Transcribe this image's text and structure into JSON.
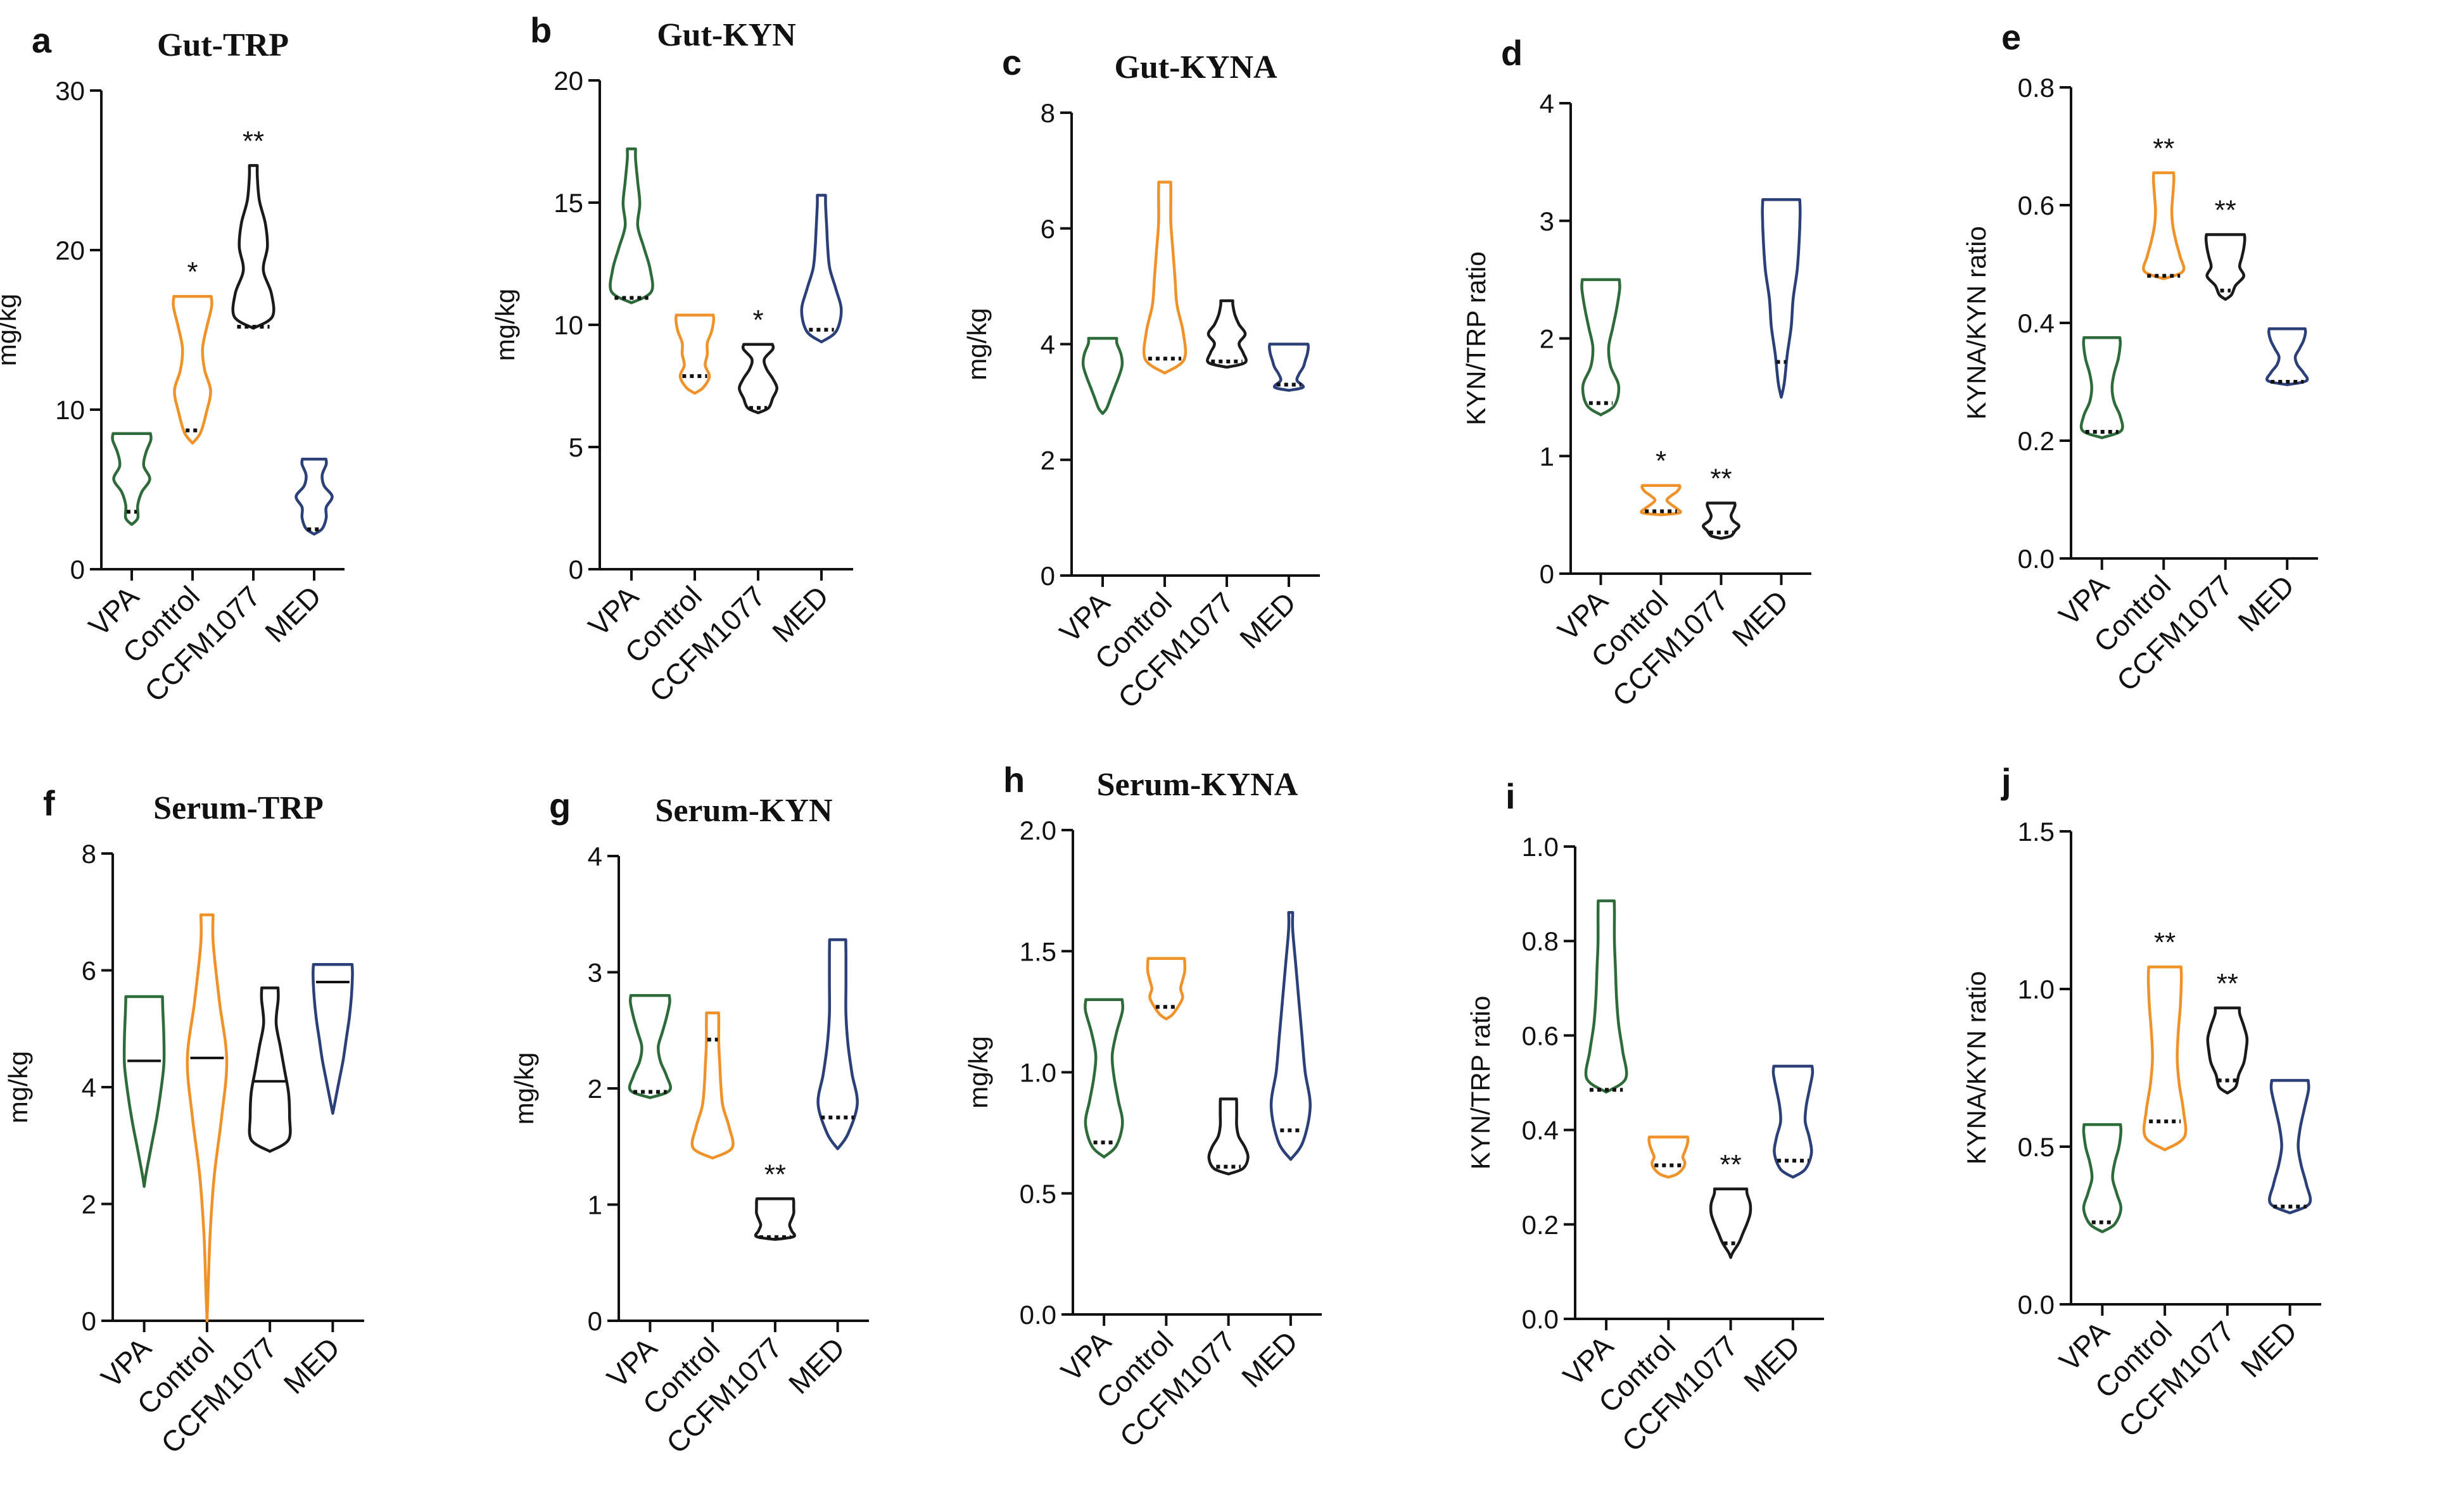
{
  "chart_data": [
    {
      "panel": "a",
      "type": "violin",
      "title": "Gut-TRP",
      "xlabel": "",
      "ylabel": "mg/kg",
      "ylim": [
        0,
        30
      ],
      "yticks": [
        0,
        10,
        20,
        30
      ],
      "yticklabels": [
        "0",
        "10",
        "20",
        "30"
      ],
      "categories": [
        "VPA",
        "Control",
        "CCFM1077",
        "MED"
      ],
      "series": [
        {
          "name": "VPA",
          "color": "#2e6b3a",
          "min": 2.8,
          "max": 8.5,
          "median": 3.6,
          "median_style": "dotted",
          "widths": [
            0.3,
            0.3,
            0.5,
            0.9,
            0.6,
            0.7,
            0.95
          ]
        },
        {
          "name": "Control",
          "color": "#f0922a",
          "min": 7.9,
          "max": 17.1,
          "median": 8.7,
          "median_style": "dotted",
          "widths": [
            0.4,
            0.7,
            0.9,
            0.6,
            0.5,
            0.7,
            0.95
          ]
        },
        {
          "name": "CCFM1077",
          "color": "#1a1a1a",
          "min": 15.1,
          "max": 25.3,
          "median": 15.2,
          "median_style": "dotted",
          "widths": [
            0.95,
            0.9,
            0.5,
            0.7,
            0.6,
            0.3,
            0.2
          ]
        },
        {
          "name": "MED",
          "color": "#2b3f78",
          "min": 2.2,
          "max": 6.9,
          "median": 2.5,
          "median_style": "dotted",
          "widths": [
            0.4,
            0.6,
            0.6,
            0.9,
            0.5,
            0.4,
            0.6
          ]
        }
      ],
      "annotations": [
        "",
        "*",
        "**",
        ""
      ]
    },
    {
      "panel": "b",
      "type": "violin",
      "title": "Gut-KYN",
      "xlabel": "",
      "ylabel": "mg/kg",
      "ylim": [
        0,
        20
      ],
      "yticks": [
        0,
        5,
        10,
        15,
        20
      ],
      "yticklabels": [
        "0",
        "5",
        "10",
        "15",
        "20"
      ],
      "categories": [
        "VPA",
        "Control",
        "CCFM1077",
        "MED"
      ],
      "series": [
        {
          "name": "VPA",
          "color": "#2e6b3a",
          "min": 10.9,
          "max": 17.2,
          "median": 11.1,
          "median_style": "dotted",
          "widths": [
            0.95,
            0.9,
            0.6,
            0.3,
            0.4,
            0.3,
            0.2
          ]
        },
        {
          "name": "Control",
          "color": "#f0922a",
          "min": 7.2,
          "max": 10.4,
          "median": 7.9,
          "median_style": "dotted",
          "widths": [
            0.4,
            0.7,
            0.5,
            0.6,
            0.6,
            0.8,
            0.9
          ]
        },
        {
          "name": "CCFM1077",
          "color": "#1a1a1a",
          "min": 6.4,
          "max": 9.2,
          "median": 6.6,
          "median_style": "dotted",
          "widths": [
            0.5,
            0.7,
            0.9,
            0.7,
            0.4,
            0.3,
            0.7
          ]
        },
        {
          "name": "MED",
          "color": "#2b3f78",
          "min": 9.3,
          "max": 15.3,
          "median": 9.8,
          "median_style": "dotted",
          "widths": [
            0.7,
            0.95,
            0.7,
            0.4,
            0.3,
            0.25,
            0.2
          ]
        }
      ],
      "annotations": [
        "",
        "",
        "*",
        ""
      ]
    },
    {
      "panel": "c",
      "type": "violin",
      "title": "Gut-KYNA",
      "xlabel": "",
      "ylabel": "mg/kg",
      "ylim": [
        0,
        8
      ],
      "yticks": [
        0,
        2,
        4,
        6,
        8
      ],
      "yticklabels": [
        "0",
        "2",
        "4",
        "6",
        "8"
      ],
      "categories": [
        "VPA",
        "Control",
        "CCFM1077",
        "MED"
      ],
      "series": [
        {
          "name": "VPA",
          "color": "#2e6b3a",
          "min": 2.8,
          "max": 4.1,
          "median": 3.6,
          "median_style": "none",
          "widths": [
            0.2,
            0.4,
            0.6,
            0.8,
            0.95,
            0.9,
            0.7
          ]
        },
        {
          "name": "Control",
          "color": "#f0922a",
          "min": 3.5,
          "max": 6.8,
          "median": 3.75,
          "median_style": "dotted",
          "widths": [
            0.95,
            0.9,
            0.6,
            0.5,
            0.4,
            0.3,
            0.3
          ]
        },
        {
          "name": "CCFM1077",
          "color": "#1a1a1a",
          "min": 3.6,
          "max": 4.75,
          "median": 3.7,
          "median_style": "dotted",
          "widths": [
            0.9,
            0.8,
            0.6,
            0.9,
            0.6,
            0.4,
            0.3
          ]
        },
        {
          "name": "MED",
          "color": "#2b3f78",
          "min": 3.2,
          "max": 4.0,
          "median": 3.3,
          "median_style": "dotted",
          "widths": [
            0.7,
            0.4,
            0.5,
            0.7,
            0.8,
            0.9,
            0.95
          ]
        }
      ],
      "annotations": [
        "",
        "",
        "",
        ""
      ]
    },
    {
      "panel": "d",
      "type": "violin",
      "title": "",
      "xlabel": "",
      "ylabel": "KYN/TRP ratio",
      "ylim": [
        0,
        4
      ],
      "yticks": [
        0,
        1,
        2,
        3,
        4
      ],
      "yticklabels": [
        "0",
        "1",
        "2",
        "3",
        "4"
      ],
      "categories": [
        "VPA",
        "Control",
        "CCFM1077",
        "MED"
      ],
      "series": [
        {
          "name": "VPA",
          "color": "#2e6b3a",
          "min": 1.35,
          "max": 2.5,
          "median": 1.45,
          "median_style": "dotted",
          "widths": [
            0.7,
            0.9,
            0.5,
            0.4,
            0.6,
            0.8,
            0.95
          ]
        },
        {
          "name": "Control",
          "color": "#f0922a",
          "min": 0.5,
          "max": 0.75,
          "median": 0.53,
          "median_style": "dotted",
          "widths": [
            0.95,
            0.8,
            0.5,
            0.3,
            0.5,
            0.8,
            0.95
          ]
        },
        {
          "name": "CCFM1077",
          "color": "#1a1a1a",
          "min": 0.3,
          "max": 0.6,
          "median": 0.35,
          "median_style": "dotted",
          "widths": [
            0.5,
            0.7,
            0.9,
            0.6,
            0.5,
            0.6,
            0.7
          ]
        },
        {
          "name": "MED",
          "color": "#2b3f78",
          "min": 1.5,
          "max": 3.18,
          "median": 1.8,
          "median_style": "dotted",
          "widths": [
            0.15,
            0.3,
            0.5,
            0.6,
            0.8,
            0.9,
            0.95
          ]
        }
      ],
      "annotations": [
        "",
        "*",
        "**",
        ""
      ]
    },
    {
      "panel": "e",
      "type": "violin",
      "title": "",
      "xlabel": "",
      "ylabel": "KYNA/KYN ratio",
      "ylim": [
        0,
        0.8
      ],
      "yticks": [
        0,
        0.2,
        0.4,
        0.6,
        0.8
      ],
      "yticklabels": [
        "0.0",
        "0.2",
        "0.4",
        "0.6",
        "0.8"
      ],
      "categories": [
        "VPA",
        "Control",
        "CCFM1077",
        "MED"
      ],
      "series": [
        {
          "name": "VPA",
          "color": "#2e6b3a",
          "min": 0.205,
          "max": 0.375,
          "median": 0.215,
          "median_style": "dotted",
          "widths": [
            0.95,
            0.9,
            0.6,
            0.5,
            0.6,
            0.8,
            0.9
          ]
        },
        {
          "name": "Control",
          "color": "#f0922a",
          "min": 0.475,
          "max": 0.655,
          "median": 0.48,
          "median_style": "dotted",
          "widths": [
            0.95,
            0.8,
            0.6,
            0.45,
            0.4,
            0.45,
            0.5
          ]
        },
        {
          "name": "CCFM1077",
          "color": "#1a1a1a",
          "min": 0.44,
          "max": 0.55,
          "median": 0.455,
          "median_style": "dotted",
          "widths": [
            0.3,
            0.5,
            0.9,
            0.7,
            0.8,
            0.9,
            0.95
          ]
        },
        {
          "name": "MED",
          "color": "#2b3f78",
          "min": 0.295,
          "max": 0.39,
          "median": 0.3,
          "median_style": "dotted",
          "widths": [
            0.95,
            0.8,
            0.5,
            0.4,
            0.6,
            0.8,
            0.9
          ]
        }
      ],
      "annotations": [
        "",
        "**",
        "**",
        ""
      ]
    },
    {
      "panel": "f",
      "type": "violin",
      "title": "Serum-TRP",
      "xlabel": "",
      "ylabel": "mg/kg",
      "ylim": [
        0,
        8
      ],
      "yticks": [
        0,
        2,
        4,
        6,
        8
      ],
      "yticklabels": [
        "0",
        "2",
        "4",
        "6",
        "8"
      ],
      "categories": [
        "VPA",
        "Control",
        "CCFM1077",
        "MED"
      ],
      "series": [
        {
          "name": "VPA",
          "color": "#2e6b3a",
          "min": 2.3,
          "max": 5.55,
          "median": 4.45,
          "median_style": "solid",
          "widths": [
            0.1,
            0.35,
            0.6,
            0.8,
            0.95,
            0.95,
            0.9
          ]
        },
        {
          "name": "Control",
          "color": "#f0922a",
          "min": 0.0,
          "max": 6.95,
          "median": 4.5,
          "median_style": "solid",
          "widths": [
            0.05,
            0.15,
            0.35,
            0.7,
            0.95,
            0.6,
            0.3
          ]
        },
        {
          "name": "CCFM1077",
          "color": "#1a1a1a",
          "min": 2.9,
          "max": 5.7,
          "median": 4.1,
          "median_style": "solid",
          "widths": [
            0.9,
            0.95,
            0.9,
            0.7,
            0.5,
            0.3,
            0.4
          ]
        },
        {
          "name": "MED",
          "color": "#2b3f78",
          "min": 3.55,
          "max": 6.1,
          "median": 5.8,
          "median_style": "solid",
          "widths": [
            0.1,
            0.3,
            0.5,
            0.65,
            0.8,
            0.9,
            0.95
          ]
        }
      ],
      "annotations": [
        "",
        "",
        "",
        ""
      ]
    },
    {
      "panel": "g",
      "type": "violin",
      "title": "Serum-KYN",
      "xlabel": "",
      "ylabel": "mg/kg",
      "ylim": [
        0,
        4
      ],
      "yticks": [
        0,
        1,
        2,
        3,
        4
      ],
      "yticklabels": [
        "0",
        "1",
        "2",
        "3",
        "4"
      ],
      "categories": [
        "VPA",
        "Control",
        "CCFM1077",
        "MED"
      ],
      "series": [
        {
          "name": "VPA",
          "color": "#2e6b3a",
          "min": 1.92,
          "max": 2.8,
          "median": 1.97,
          "median_style": "dotted",
          "widths": [
            0.95,
            0.8,
            0.5,
            0.4,
            0.6,
            0.8,
            0.95
          ]
        },
        {
          "name": "Control",
          "color": "#f0922a",
          "min": 1.4,
          "max": 2.65,
          "median": 2.42,
          "median_style": "dotted",
          "widths": [
            0.95,
            0.8,
            0.5,
            0.4,
            0.35,
            0.3,
            0.3
          ]
        },
        {
          "name": "CCFM1077",
          "color": "#1a1a1a",
          "min": 0.7,
          "max": 1.05,
          "median": 0.72,
          "median_style": "dotted",
          "widths": [
            0.9,
            0.8,
            0.7,
            0.8,
            0.9,
            0.9,
            0.9
          ]
        },
        {
          "name": "MED",
          "color": "#2b3f78",
          "min": 1.48,
          "max": 3.28,
          "median": 1.75,
          "median_style": "dotted",
          "widths": [
            0.5,
            0.95,
            0.7,
            0.5,
            0.4,
            0.4,
            0.4
          ]
        }
      ],
      "annotations": [
        "",
        "",
        "**",
        ""
      ]
    },
    {
      "panel": "h",
      "type": "violin",
      "title": "Serum-KYNA",
      "xlabel": "",
      "ylabel": "mg/kg",
      "ylim": [
        0,
        2
      ],
      "yticks": [
        0,
        0.5,
        1.0,
        1.5,
        2.0
      ],
      "yticklabels": [
        "0.0",
        "0.5",
        "1.0",
        "1.5",
        "2.0"
      ],
      "categories": [
        "VPA",
        "Control",
        "CCFM1077",
        "MED"
      ],
      "series": [
        {
          "name": "VPA",
          "color": "#2e6b3a",
          "min": 0.65,
          "max": 1.3,
          "median": 0.71,
          "median_style": "dotted",
          "widths": [
            0.6,
            0.9,
            0.7,
            0.5,
            0.4,
            0.6,
            0.9
          ]
        },
        {
          "name": "Control",
          "color": "#f0922a",
          "min": 1.22,
          "max": 1.47,
          "median": 1.27,
          "median_style": "dotted",
          "widths": [
            0.3,
            0.6,
            0.8,
            0.7,
            0.8,
            0.9,
            0.9
          ]
        },
        {
          "name": "CCFM1077",
          "color": "#1a1a1a",
          "min": 0.58,
          "max": 0.89,
          "median": 0.61,
          "median_style": "dotted",
          "widths": [
            0.7,
            0.95,
            0.8,
            0.5,
            0.4,
            0.4,
            0.4
          ]
        },
        {
          "name": "MED",
          "color": "#2b3f78",
          "min": 0.64,
          "max": 1.66,
          "median": 0.76,
          "median_style": "dotted",
          "widths": [
            0.6,
            0.95,
            0.7,
            0.55,
            0.4,
            0.25,
            0.1
          ]
        }
      ],
      "annotations": [
        "",
        "",
        "",
        ""
      ]
    },
    {
      "panel": "i",
      "type": "violin",
      "title": "",
      "xlabel": "",
      "ylabel": "KYN/TRP ratio",
      "ylim": [
        0,
        1
      ],
      "yticks": [
        0,
        0.2,
        0.4,
        0.6,
        0.8,
        1.0
      ],
      "yticklabels": [
        "0.0",
        "0.2",
        "0.4",
        "0.6",
        "0.8",
        "1.0"
      ],
      "categories": [
        "VPA",
        "Control",
        "CCFM1077",
        "MED"
      ],
      "series": [
        {
          "name": "VPA",
          "color": "#2e6b3a",
          "min": 0.48,
          "max": 0.885,
          "median": 0.485,
          "median_style": "dotted",
          "widths": [
            0.95,
            0.8,
            0.6,
            0.5,
            0.45,
            0.4,
            0.4
          ]
        },
        {
          "name": "Control",
          "color": "#f0922a",
          "min": 0.3,
          "max": 0.385,
          "median": 0.325,
          "median_style": "dotted",
          "widths": [
            0.4,
            0.7,
            0.8,
            0.7,
            0.8,
            0.9,
            0.95
          ]
        },
        {
          "name": "CCFM1077",
          "color": "#1a1a1a",
          "min": 0.13,
          "max": 0.275,
          "median": 0.16,
          "median_style": "dotted",
          "widths": [
            0.1,
            0.4,
            0.6,
            0.8,
            0.95,
            0.95,
            0.8
          ]
        },
        {
          "name": "MED",
          "color": "#2b3f78",
          "min": 0.3,
          "max": 0.535,
          "median": 0.335,
          "median_style": "dotted",
          "widths": [
            0.6,
            0.9,
            0.8,
            0.6,
            0.65,
            0.8,
            0.95
          ]
        }
      ],
      "annotations": [
        "",
        "",
        "**",
        ""
      ]
    },
    {
      "panel": "j",
      "type": "violin",
      "title": "",
      "xlabel": "",
      "ylabel": "KYNA/KYN ratio",
      "ylim": [
        0,
        1.5
      ],
      "yticks": [
        0,
        0.5,
        1.0,
        1.5
      ],
      "yticklabels": [
        "0.0",
        "0.5",
        "1.0",
        "1.5"
      ],
      "categories": [
        "VPA",
        "Control",
        "CCFM1077",
        "MED"
      ],
      "series": [
        {
          "name": "VPA",
          "color": "#2e6b3a",
          "min": 0.23,
          "max": 0.57,
          "median": 0.26,
          "median_style": "dotted",
          "widths": [
            0.6,
            0.9,
            0.7,
            0.5,
            0.6,
            0.8,
            0.9
          ]
        },
        {
          "name": "Control",
          "color": "#f0922a",
          "min": 0.49,
          "max": 1.07,
          "median": 0.58,
          "median_style": "dotted",
          "widths": [
            0.95,
            0.9,
            0.7,
            0.6,
            0.65,
            0.75,
            0.8
          ]
        },
        {
          "name": "CCFM1077",
          "color": "#1a1a1a",
          "min": 0.67,
          "max": 0.94,
          "median": 0.71,
          "median_style": "dotted",
          "widths": [
            0.4,
            0.55,
            0.8,
            0.9,
            0.95,
            0.8,
            0.6
          ]
        },
        {
          "name": "MED",
          "color": "#2b3f78",
          "min": 0.29,
          "max": 0.71,
          "median": 0.31,
          "median_style": "dotted",
          "widths": [
            0.95,
            0.8,
            0.55,
            0.4,
            0.5,
            0.7,
            0.9
          ]
        }
      ],
      "annotations": [
        "",
        "**",
        "**",
        ""
      ]
    }
  ]
}
